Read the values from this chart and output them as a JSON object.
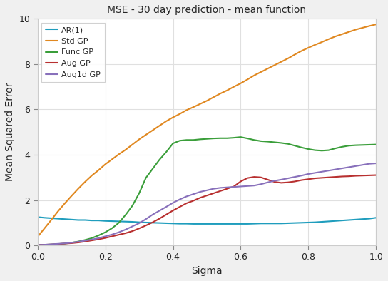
{
  "title": "MSE - 30 day prediction - mean function",
  "xlabel": "Sigma",
  "ylabel": "Mean Squared Error",
  "xlim": [
    0.0,
    1.0
  ],
  "ylim": [
    0.0,
    10
  ],
  "yticks": [
    0,
    2,
    4,
    6,
    8,
    10
  ],
  "xticks": [
    0.0,
    0.2,
    0.4,
    0.6,
    0.8,
    1.0
  ],
  "figsize": [
    5.44,
    3.94
  ],
  "dpi": 100,
  "lines": {
    "AR(1)": {
      "color": "#1f9dbd",
      "x": [
        0.0,
        0.02,
        0.04,
        0.06,
        0.08,
        0.1,
        0.12,
        0.14,
        0.16,
        0.18,
        0.2,
        0.22,
        0.24,
        0.26,
        0.28,
        0.3,
        0.32,
        0.34,
        0.36,
        0.38,
        0.4,
        0.42,
        0.44,
        0.46,
        0.48,
        0.5,
        0.52,
        0.54,
        0.56,
        0.58,
        0.6,
        0.62,
        0.64,
        0.66,
        0.68,
        0.7,
        0.72,
        0.74,
        0.76,
        0.78,
        0.8,
        0.82,
        0.84,
        0.86,
        0.88,
        0.9,
        0.92,
        0.94,
        0.96,
        0.98,
        1.0
      ],
      "y": [
        1.25,
        1.22,
        1.2,
        1.18,
        1.16,
        1.14,
        1.12,
        1.12,
        1.1,
        1.1,
        1.08,
        1.07,
        1.06,
        1.05,
        1.04,
        1.02,
        1.01,
        1.0,
        0.99,
        0.98,
        0.97,
        0.96,
        0.96,
        0.95,
        0.95,
        0.95,
        0.95,
        0.95,
        0.95,
        0.95,
        0.95,
        0.95,
        0.96,
        0.97,
        0.97,
        0.97,
        0.97,
        0.98,
        0.99,
        1.0,
        1.01,
        1.02,
        1.04,
        1.06,
        1.08,
        1.1,
        1.12,
        1.14,
        1.16,
        1.18,
        1.22
      ]
    },
    "Std GP": {
      "color": "#e08820",
      "x": [
        0.0,
        0.02,
        0.04,
        0.06,
        0.08,
        0.1,
        0.12,
        0.14,
        0.16,
        0.18,
        0.2,
        0.22,
        0.24,
        0.26,
        0.28,
        0.3,
        0.32,
        0.34,
        0.36,
        0.38,
        0.4,
        0.42,
        0.44,
        0.46,
        0.48,
        0.5,
        0.52,
        0.54,
        0.56,
        0.58,
        0.6,
        0.62,
        0.64,
        0.66,
        0.68,
        0.7,
        0.72,
        0.74,
        0.76,
        0.78,
        0.8,
        0.82,
        0.84,
        0.86,
        0.88,
        0.9,
        0.92,
        0.94,
        0.96,
        0.98,
        1.0
      ],
      "y": [
        0.38,
        0.75,
        1.12,
        1.5,
        1.85,
        2.18,
        2.5,
        2.8,
        3.08,
        3.32,
        3.58,
        3.8,
        4.02,
        4.22,
        4.45,
        4.68,
        4.88,
        5.08,
        5.28,
        5.48,
        5.65,
        5.8,
        5.97,
        6.1,
        6.24,
        6.38,
        6.54,
        6.7,
        6.84,
        7.0,
        7.15,
        7.32,
        7.5,
        7.65,
        7.8,
        7.95,
        8.1,
        8.25,
        8.42,
        8.58,
        8.72,
        8.85,
        8.97,
        9.1,
        9.22,
        9.32,
        9.42,
        9.52,
        9.6,
        9.68,
        9.75
      ]
    },
    "Func GP": {
      "color": "#3a9e3a",
      "x": [
        0.0,
        0.02,
        0.04,
        0.06,
        0.08,
        0.1,
        0.12,
        0.14,
        0.16,
        0.18,
        0.2,
        0.22,
        0.24,
        0.26,
        0.28,
        0.3,
        0.32,
        0.34,
        0.36,
        0.38,
        0.4,
        0.42,
        0.44,
        0.46,
        0.48,
        0.5,
        0.52,
        0.54,
        0.56,
        0.58,
        0.6,
        0.62,
        0.64,
        0.66,
        0.68,
        0.7,
        0.72,
        0.74,
        0.76,
        0.78,
        0.8,
        0.82,
        0.84,
        0.86,
        0.88,
        0.9,
        0.92,
        0.94,
        0.96,
        0.98,
        1.0
      ],
      "y": [
        0.02,
        0.03,
        0.04,
        0.06,
        0.08,
        0.12,
        0.17,
        0.24,
        0.32,
        0.44,
        0.58,
        0.76,
        1.0,
        1.35,
        1.75,
        2.3,
        2.98,
        3.38,
        3.78,
        4.12,
        4.5,
        4.62,
        4.65,
        4.65,
        4.68,
        4.7,
        4.72,
        4.73,
        4.73,
        4.75,
        4.78,
        4.72,
        4.65,
        4.6,
        4.58,
        4.55,
        4.52,
        4.48,
        4.4,
        4.32,
        4.25,
        4.2,
        4.18,
        4.2,
        4.28,
        4.35,
        4.4,
        4.42,
        4.43,
        4.44,
        4.45
      ]
    },
    "Aug GP": {
      "color": "#b83030",
      "x": [
        0.0,
        0.02,
        0.04,
        0.06,
        0.08,
        0.1,
        0.12,
        0.14,
        0.16,
        0.18,
        0.2,
        0.22,
        0.24,
        0.26,
        0.28,
        0.3,
        0.32,
        0.34,
        0.36,
        0.38,
        0.4,
        0.42,
        0.44,
        0.46,
        0.48,
        0.5,
        0.52,
        0.54,
        0.56,
        0.58,
        0.6,
        0.62,
        0.64,
        0.66,
        0.68,
        0.7,
        0.72,
        0.74,
        0.76,
        0.78,
        0.8,
        0.82,
        0.84,
        0.86,
        0.88,
        0.9,
        0.92,
        0.94,
        0.96,
        0.98,
        1.0
      ],
      "y": [
        0.02,
        0.03,
        0.04,
        0.06,
        0.08,
        0.1,
        0.13,
        0.17,
        0.22,
        0.27,
        0.33,
        0.4,
        0.47,
        0.54,
        0.63,
        0.75,
        0.88,
        1.02,
        1.18,
        1.36,
        1.54,
        1.7,
        1.86,
        1.97,
        2.1,
        2.2,
        2.3,
        2.4,
        2.5,
        2.6,
        2.82,
        2.97,
        3.02,
        3.0,
        2.9,
        2.8,
        2.76,
        2.78,
        2.82,
        2.88,
        2.92,
        2.96,
        2.98,
        3.0,
        3.02,
        3.04,
        3.05,
        3.07,
        3.08,
        3.09,
        3.1
      ]
    },
    "Aug1d GP": {
      "color": "#8870bb",
      "x": [
        0.0,
        0.02,
        0.04,
        0.06,
        0.08,
        0.1,
        0.12,
        0.14,
        0.16,
        0.18,
        0.2,
        0.22,
        0.24,
        0.26,
        0.28,
        0.3,
        0.32,
        0.34,
        0.36,
        0.38,
        0.4,
        0.42,
        0.44,
        0.46,
        0.48,
        0.5,
        0.52,
        0.54,
        0.56,
        0.58,
        0.6,
        0.62,
        0.64,
        0.66,
        0.68,
        0.7,
        0.72,
        0.74,
        0.76,
        0.78,
        0.8,
        0.82,
        0.84,
        0.86,
        0.88,
        0.9,
        0.92,
        0.94,
        0.96,
        0.98,
        1.0
      ],
      "y": [
        0.02,
        0.03,
        0.05,
        0.07,
        0.09,
        0.12,
        0.16,
        0.21,
        0.26,
        0.32,
        0.4,
        0.48,
        0.58,
        0.7,
        0.84,
        0.98,
        1.16,
        1.36,
        1.53,
        1.7,
        1.88,
        2.03,
        2.16,
        2.26,
        2.36,
        2.43,
        2.5,
        2.54,
        2.56,
        2.58,
        2.6,
        2.62,
        2.64,
        2.7,
        2.78,
        2.85,
        2.9,
        2.96,
        3.02,
        3.08,
        3.15,
        3.2,
        3.25,
        3.3,
        3.35,
        3.4,
        3.45,
        3.5,
        3.55,
        3.6,
        3.62
      ]
    }
  }
}
